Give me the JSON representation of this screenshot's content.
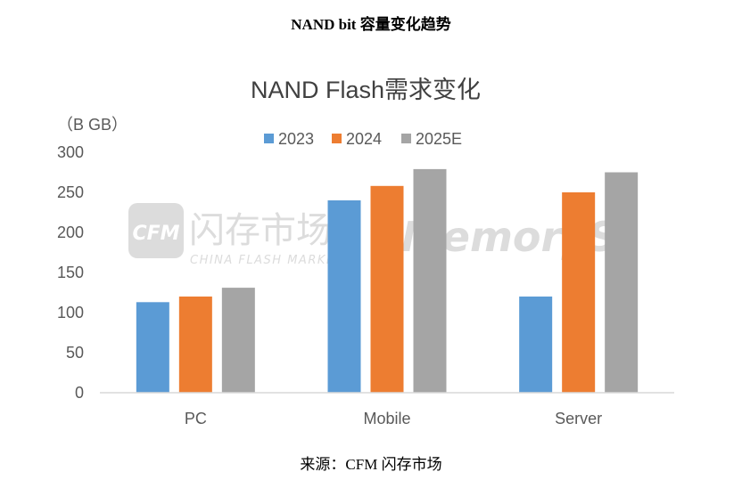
{
  "document": {
    "title": "NAND bit 容量变化趋势",
    "source": "来源：CFM 闪存市场"
  },
  "colors": {
    "series_2023": "#5b9bd5",
    "series_2024": "#ed7d31",
    "series_2025E": "#a5a5a5",
    "axis_text": "#595959",
    "title_text": "#404040",
    "watermark": "#d9d9d9"
  },
  "watermark": {
    "logo": "CFM",
    "chinese": "闪存市场",
    "english": "CHINA FLASH MARKET",
    "brand": "MemoryS"
  },
  "chart_data": {
    "type": "bar",
    "title": "NAND Flash需求变化",
    "ylabel": "（B GB）",
    "xlabel": "",
    "categories": [
      "PC",
      "Mobile",
      "Server"
    ],
    "series": [
      {
        "name": "2023",
        "values": [
          113,
          240,
          120
        ]
      },
      {
        "name": "2024",
        "values": [
          120,
          258,
          250
        ]
      },
      {
        "name": "2025E",
        "values": [
          131,
          279,
          275
        ]
      }
    ],
    "ylim": [
      0,
      300
    ],
    "yticks": [
      "0",
      "50",
      "100",
      "150",
      "200",
      "250",
      "300"
    ],
    "grid": false,
    "legend_position": "top-center"
  }
}
